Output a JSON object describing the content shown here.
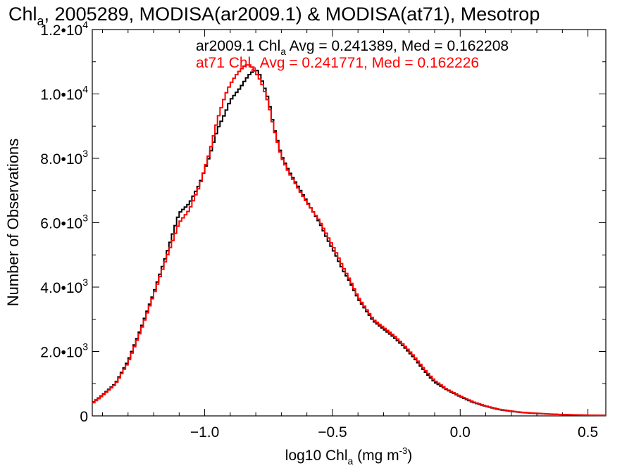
{
  "chart_data": {
    "type": "line",
    "title": "Chl",
    "title_sub": "a",
    "title_rest": ", 2005289, MODISA(ar2009.1) & MODISA(at71), Mesotrop",
    "xlabel_pre": "log10 Chl",
    "xlabel_sub": "a",
    "xlabel_post": " (mg m",
    "xlabel_sup": "-3",
    "xlabel_close": ")",
    "ylabel": "Number of Observations",
    "xlim": [
      -1.44,
      0.57
    ],
    "ylim": [
      0,
      12000
    ],
    "x_ticks": [
      {
        "value": -1.0,
        "label": "−1.0"
      },
      {
        "value": -0.5,
        "label": "−0.5"
      },
      {
        "value": 0.0,
        "label": "0.0"
      },
      {
        "value": 0.5,
        "label": "0.5"
      }
    ],
    "y_ticks": [
      {
        "value": 0,
        "label": "0",
        "exp": ""
      },
      {
        "value": 2000,
        "label": "2.0•10",
        "exp": "3"
      },
      {
        "value": 4000,
        "label": "4.0•10",
        "exp": "3"
      },
      {
        "value": 6000,
        "label": "6.0•10",
        "exp": "3"
      },
      {
        "value": 8000,
        "label": "8.0•10",
        "exp": "3"
      },
      {
        "value": 10000,
        "label": "1.0•10",
        "exp": "4"
      },
      {
        "value": 12000,
        "label": "1.2•10",
        "exp": "4"
      }
    ],
    "annotations": [
      {
        "color": "#000000",
        "pre": "ar2009.1 Chl",
        "sub": "a",
        "post": " Avg = 0.241389, Med = 0.162208"
      },
      {
        "color": "#ff0000",
        "pre": "at71 Chl",
        "sub": "a",
        "post": " Avg = 0.241771, Med = 0.162226"
      }
    ],
    "series": [
      {
        "color": "#000000",
        "x": [
          -1.44,
          -1.4,
          -1.35,
          -1.3,
          -1.25,
          -1.2,
          -1.15,
          -1.1,
          -1.06,
          -1.02,
          -0.98,
          -0.95,
          -0.92,
          -0.9,
          -0.88,
          -0.86,
          -0.84,
          -0.82,
          -0.8,
          -0.79,
          -0.77,
          -0.75,
          -0.73,
          -0.7,
          -0.67,
          -0.64,
          -0.61,
          -0.58,
          -0.55,
          -0.52,
          -0.49,
          -0.46,
          -0.43,
          -0.4,
          -0.37,
          -0.34,
          -0.3,
          -0.26,
          -0.22,
          -0.18,
          -0.14,
          -0.1,
          -0.05,
          0.0,
          0.05,
          0.1,
          0.15,
          0.2,
          0.25,
          0.3,
          0.35,
          0.4,
          0.45,
          0.5,
          0.57
        ],
        "y": [
          400,
          650,
          1000,
          1700,
          2700,
          3800,
          5000,
          6300,
          6600,
          7200,
          8100,
          8900,
          9400,
          9800,
          10000,
          10200,
          10450,
          10650,
          10750,
          10700,
          10300,
          9800,
          9000,
          8100,
          7600,
          7200,
          6800,
          6400,
          6000,
          5500,
          5050,
          4550,
          4150,
          3650,
          3300,
          2950,
          2700,
          2450,
          2150,
          1800,
          1400,
          1050,
          800,
          600,
          420,
          300,
          200,
          140,
          100,
          75,
          55,
          40,
          30,
          20,
          15
        ]
      },
      {
        "color": "#ff0000",
        "x": [
          -1.44,
          -1.4,
          -1.35,
          -1.3,
          -1.25,
          -1.2,
          -1.15,
          -1.1,
          -1.06,
          -1.02,
          -0.98,
          -0.95,
          -0.92,
          -0.9,
          -0.88,
          -0.86,
          -0.84,
          -0.82,
          -0.8,
          -0.79,
          -0.77,
          -0.75,
          -0.73,
          -0.7,
          -0.67,
          -0.64,
          -0.61,
          -0.58,
          -0.55,
          -0.52,
          -0.49,
          -0.46,
          -0.43,
          -0.4,
          -0.37,
          -0.34,
          -0.3,
          -0.26,
          -0.22,
          -0.18,
          -0.14,
          -0.1,
          -0.05,
          0.0,
          0.05,
          0.1,
          0.15,
          0.2,
          0.25,
          0.3,
          0.35,
          0.4,
          0.45,
          0.5,
          0.57
        ],
        "y": [
          380,
          630,
          980,
          1650,
          2650,
          3750,
          4900,
          6000,
          6400,
          7150,
          8200,
          9200,
          9950,
          10300,
          10550,
          10750,
          10900,
          10900,
          10650,
          10550,
          10200,
          9700,
          8950,
          8050,
          7550,
          7150,
          6750,
          6400,
          6050,
          5600,
          5150,
          4650,
          4200,
          3700,
          3350,
          3000,
          2750,
          2500,
          2200,
          1850,
          1450,
          1100,
          820,
          620,
          440,
          310,
          210,
          150,
          105,
          80,
          58,
          42,
          32,
          22,
          16
        ]
      }
    ]
  }
}
